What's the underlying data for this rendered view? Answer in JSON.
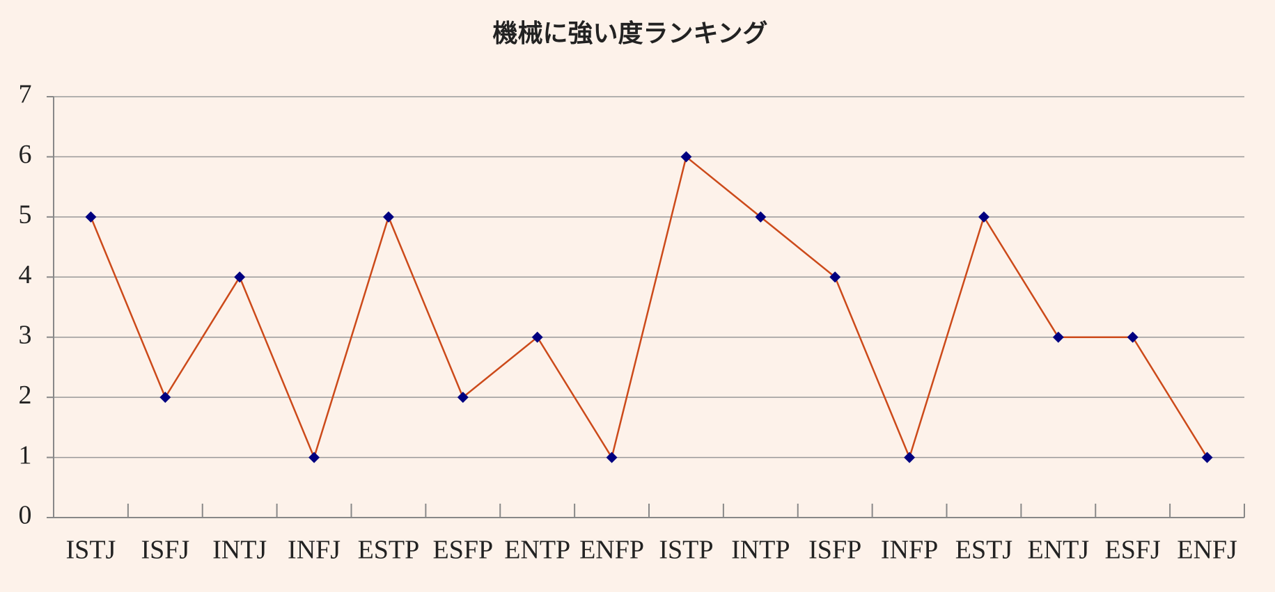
{
  "chart_data": {
    "type": "line",
    "title": "機械に強い度ランキング",
    "categories": [
      "ISTJ",
      "ISFJ",
      "INTJ",
      "INFJ",
      "ESTP",
      "ESFP",
      "ENTP",
      "ENFP",
      "ISTP",
      "INTP",
      "ISFP",
      "INFP",
      "ESTJ",
      "ENTJ",
      "ESFJ",
      "ENFJ"
    ],
    "values": [
      5,
      2,
      4,
      1,
      5,
      2,
      3,
      1,
      6,
      5,
      4,
      1,
      5,
      3,
      3,
      1
    ],
    "color": "#cc4a1a",
    "marker_color": "#000080",
    "ylim": [
      0,
      7
    ],
    "yticks": [
      0,
      1,
      2,
      3,
      4,
      5,
      6,
      7
    ],
    "grid": true
  }
}
